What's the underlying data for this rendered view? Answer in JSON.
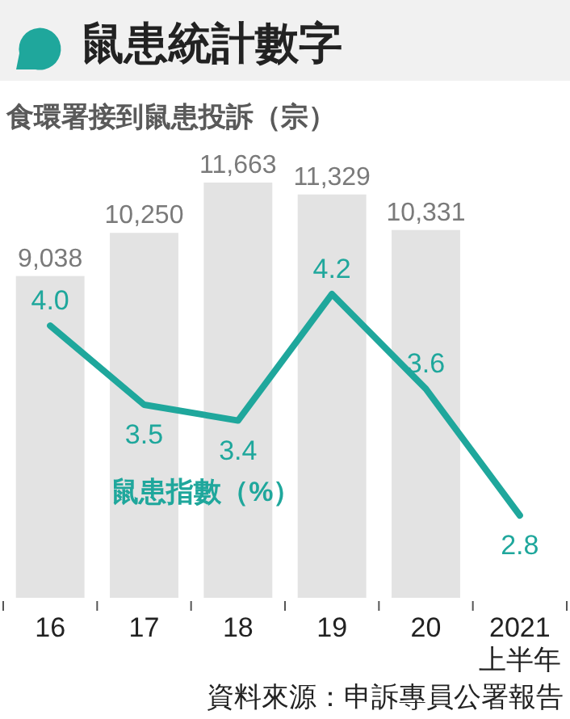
{
  "chart_data": {
    "type": "bar",
    "title": "鼠患統計數字",
    "ylabel": "食環署接到鼠患投訴（宗）",
    "categories": [
      "16",
      "17",
      "18",
      "19",
      "20",
      "2021\n上半年"
    ],
    "series": [
      {
        "color": "#e3e3e3",
        "values": [
          9038,
          10250,
          11663,
          11329,
          10331,
          null
        ],
        "value_labels": [
          "9,038",
          "10,250",
          "11,663",
          "11,329",
          "10,331",
          null
        ]
      },
      {
        "type": "line",
        "axis": "y2",
        "name": "鼠患指數（%）",
        "color": "#1fa79c",
        "values": [
          4.0,
          3.5,
          3.4,
          4.2,
          3.6,
          2.8
        ],
        "value_labels": [
          "4.0",
          "3.5",
          "3.4",
          "4.2",
          "3.6",
          "2.8"
        ]
      }
    ],
    "annotations": [
      "資料來源：申訴專員公署報告"
    ]
  }
}
